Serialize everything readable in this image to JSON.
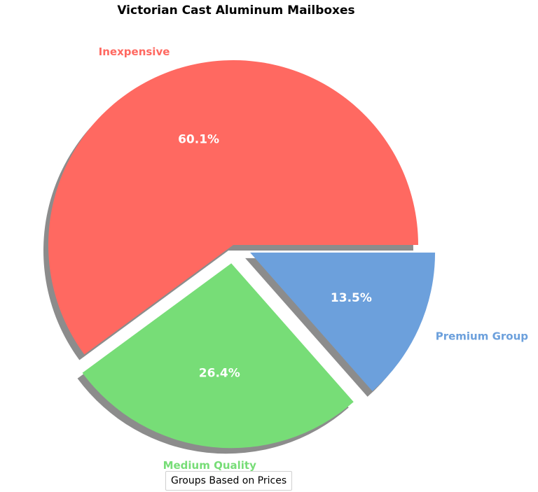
{
  "chart_data": {
    "type": "pie",
    "title": "Victorian Cast Aluminum Mailboxes",
    "legend_title": "Groups Based on Prices",
    "slices": [
      {
        "label": "Inexpensive",
        "percent_label": "60.1%",
        "value": 60.1,
        "color": "#ff6961",
        "exploded": false
      },
      {
        "label": "Medium Quality",
        "percent_label": "26.4%",
        "value": 26.4,
        "color": "#77dd77",
        "exploded": true
      },
      {
        "label": "Premium Group",
        "percent_label": "13.5%",
        "value": 13.5,
        "color": "#6ca0dc",
        "exploded": true
      }
    ],
    "start_angle_deg": 0,
    "direction": "counterclockwise",
    "shadow": true
  }
}
